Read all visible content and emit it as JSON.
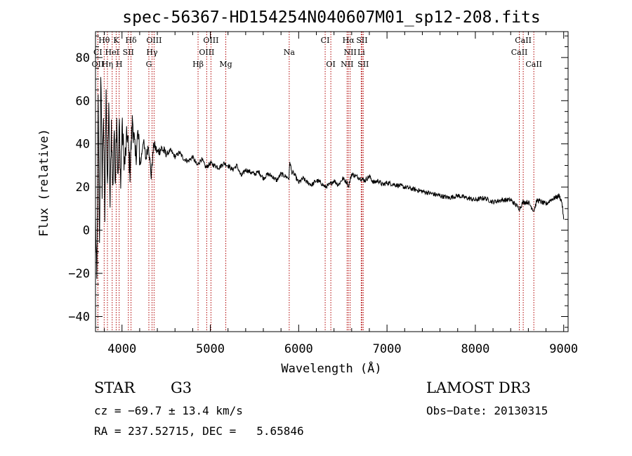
{
  "chart_data": {
    "type": "line",
    "title": "spec-56367-HD154254N040607M01_sp12-208.fits",
    "xlabel": "Wavelength (Å)",
    "ylabel": "Flux (relative)",
    "xlim": [
      3700,
      9050
    ],
    "ylim": [
      -47,
      92
    ],
    "x_ticks": [
      4000,
      5000,
      6000,
      7000,
      8000,
      9000
    ],
    "y_ticks": [
      -40,
      -20,
      0,
      20,
      40,
      60,
      80
    ],
    "x_tick_labels": [
      "4000",
      "5000",
      "6000",
      "7000",
      "8000",
      "9000"
    ],
    "y_tick_labels": [
      "−40",
      "−20",
      "0",
      "20",
      "40",
      "60",
      "80"
    ],
    "series": [
      {
        "name": "flux",
        "x": [
          3700,
          3715,
          3730,
          3745,
          3760,
          3775,
          3790,
          3805,
          3820,
          3835,
          3850,
          3865,
          3880,
          3895,
          3910,
          3925,
          3940,
          3955,
          3970,
          3985,
          4000,
          4030,
          4060,
          4090,
          4120,
          4150,
          4180,
          4210,
          4240,
          4270,
          4300,
          4330,
          4360,
          4400,
          4450,
          4500,
          4550,
          4600,
          4650,
          4700,
          4750,
          4800,
          4850,
          4900,
          4950,
          5000,
          5050,
          5100,
          5150,
          5200,
          5250,
          5300,
          5350,
          5400,
          5450,
          5500,
          5550,
          5600,
          5650,
          5700,
          5750,
          5800,
          5850,
          5890,
          5900,
          5920,
          5950,
          6000,
          6050,
          6100,
          6150,
          6200,
          6250,
          6300,
          6350,
          6400,
          6450,
          6500,
          6550,
          6563,
          6600,
          6650,
          6700,
          6750,
          6800,
          6850,
          6900,
          6950,
          7000,
          7100,
          7200,
          7300,
          7400,
          7500,
          7600,
          7700,
          7800,
          7900,
          8000,
          8100,
          8200,
          8300,
          8400,
          8500,
          8540,
          8600,
          8662,
          8700,
          8750,
          8800,
          8850,
          8900,
          8950,
          8980,
          9000
        ],
        "y": [
          5,
          -25,
          60,
          -10,
          75,
          20,
          55,
          5,
          70,
          15,
          60,
          10,
          50,
          18,
          45,
          25,
          55,
          22,
          50,
          20,
          48,
          30,
          45,
          28,
          52,
          33,
          44,
          30,
          42,
          33,
          40,
          25,
          40,
          36,
          38,
          35,
          37,
          34,
          36,
          33,
          32,
          34,
          30,
          33,
          29,
          31,
          30,
          29,
          31,
          30,
          28,
          30,
          25,
          28,
          27,
          26,
          27,
          24,
          26,
          25,
          23,
          26,
          25,
          24,
          32,
          27,
          26,
          22,
          24,
          22,
          21,
          23,
          22,
          20,
          21,
          23,
          21,
          24,
          22,
          20,
          26,
          25,
          24,
          23,
          25,
          22,
          23,
          21,
          22,
          21,
          20,
          19,
          18,
          17,
          16,
          15,
          16,
          15,
          14,
          15,
          13,
          14,
          14,
          10,
          13,
          13,
          9,
          14,
          13,
          12,
          14,
          15,
          16,
          13,
          5
        ]
      }
    ],
    "spectral_lines": [
      {
        "label": "Hθ",
        "x": 3798,
        "row": 1
      },
      {
        "label": "K",
        "x": 3934,
        "row": 1
      },
      {
        "label": "Hδ",
        "x": 4102,
        "row": 1
      },
      {
        "label": "OIII",
        "x": 4363,
        "row": 1
      },
      {
        "label": "OIII",
        "x": 5007,
        "row": 1
      },
      {
        "label": "CI",
        "x": 6300,
        "row": 1
      },
      {
        "label": "Hα",
        "x": 6563,
        "row": 1
      },
      {
        "label": "SII",
        "x": 6717,
        "row": 1
      },
      {
        "label": "CaII",
        "x": 8542,
        "row": 1
      },
      {
        "label": "CI",
        "x": 3727,
        "row": 2
      },
      {
        "label": "HeI",
        "x": 3889,
        "row": 2
      },
      {
        "label": "SII",
        "x": 4072,
        "row": 2
      },
      {
        "label": "Hγ",
        "x": 4340,
        "row": 2
      },
      {
        "label": "OIII",
        "x": 4959,
        "row": 2
      },
      {
        "label": "Na",
        "x": 5893,
        "row": 2
      },
      {
        "label": "NII",
        "x": 6583,
        "row": 2
      },
      {
        "label": "Li",
        "x": 6708,
        "row": 2
      },
      {
        "label": "CaII",
        "x": 8498,
        "row": 2
      },
      {
        "label": "OII",
        "x": 3727,
        "row": 3
      },
      {
        "label": "Hη",
        "x": 3835,
        "row": 3
      },
      {
        "label": "H",
        "x": 3968,
        "row": 3
      },
      {
        "label": "G",
        "x": 4304,
        "row": 3
      },
      {
        "label": "Hβ",
        "x": 4861,
        "row": 3
      },
      {
        "label": "Mg",
        "x": 5175,
        "row": 3
      },
      {
        "label": "OI",
        "x": 6364,
        "row": 3
      },
      {
        "label": "NII",
        "x": 6548,
        "row": 3
      },
      {
        "label": "SII",
        "x": 6731,
        "row": 3
      },
      {
        "label": "CaII",
        "x": 8662,
        "row": 3
      }
    ]
  },
  "info": {
    "class": "STAR",
    "subclass": "G3",
    "survey": "LAMOST DR3",
    "cz": "cz = −69.7 ± 13.4 km/s",
    "obs_date": "Obs−Date: 20130315",
    "radec": "RA = 237.52715, DEC =   5.65846"
  }
}
